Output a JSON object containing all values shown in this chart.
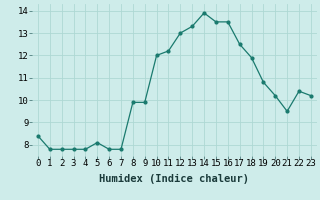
{
  "x": [
    0,
    1,
    2,
    3,
    4,
    5,
    6,
    7,
    8,
    9,
    10,
    11,
    12,
    13,
    14,
    15,
    16,
    17,
    18,
    19,
    20,
    21,
    22,
    23
  ],
  "y": [
    8.4,
    7.8,
    7.8,
    7.8,
    7.8,
    8.1,
    7.8,
    7.8,
    9.9,
    9.9,
    12.0,
    12.2,
    13.0,
    13.3,
    13.9,
    13.5,
    13.5,
    12.5,
    11.9,
    10.8,
    10.2,
    9.5,
    10.4,
    10.2
  ],
  "xlabel": "Humidex (Indice chaleur)",
  "ylim": [
    7.5,
    14.3
  ],
  "xlim": [
    -0.5,
    23.5
  ],
  "line_color": "#1a7a6e",
  "marker_color": "#1a7a6e",
  "bg_color": "#ceecea",
  "grid_color": "#aed8d4",
  "tick_labels": [
    "0",
    "1",
    "2",
    "3",
    "4",
    "5",
    "6",
    "7",
    "8",
    "9",
    "10",
    "11",
    "12",
    "13",
    "14",
    "15",
    "16",
    "17",
    "18",
    "19",
    "20",
    "21",
    "22",
    "23"
  ],
  "yticks": [
    8,
    9,
    10,
    11,
    12,
    13,
    14
  ],
  "xlabel_fontsize": 7.5,
  "tick_fontsize": 6.5
}
